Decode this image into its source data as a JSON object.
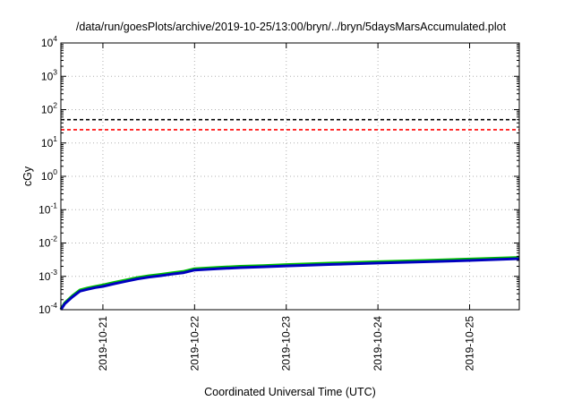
{
  "chart_data": {
    "type": "line",
    "title": "/data/run/goesPlots/archive/2019-10-25/13:00/bryn/../bryn/5daysMarsAccumulated.plot",
    "xlabel": "Coordinated Universal Time (UTC)",
    "ylabel": "cGy",
    "y_scale": "log",
    "ylim": [
      0.0001,
      10000
    ],
    "y_ticks": [
      {
        "value": 0.0001,
        "base": "10",
        "exp": "-4"
      },
      {
        "value": 0.001,
        "base": "10",
        "exp": "-3"
      },
      {
        "value": 0.01,
        "base": "10",
        "exp": "-2"
      },
      {
        "value": 0.1,
        "base": "10",
        "exp": "-1"
      },
      {
        "value": 1,
        "base": "10",
        "exp": "0"
      },
      {
        "value": 10,
        "base": "10",
        "exp": "1"
      },
      {
        "value": 100,
        "base": "10",
        "exp": "2"
      },
      {
        "value": 1000,
        "base": "10",
        "exp": "3"
      },
      {
        "value": 10000,
        "base": "10",
        "exp": "4"
      }
    ],
    "xlim": [
      "2019-10-20T13:00",
      "2019-10-25T13:00"
    ],
    "x_ticks": [
      "2019-10-21",
      "2019-10-22",
      "2019-10-23",
      "2019-10-24",
      "2019-10-25"
    ],
    "grid": true,
    "reference_lines": [
      {
        "y": 50,
        "color": "#000000",
        "style": "dashed"
      },
      {
        "y": 25,
        "color": "#ff0000",
        "style": "dashed"
      }
    ],
    "series": [
      {
        "color": "#00c000",
        "x": [
          "2019-10-20T13:00",
          "2019-10-20T14:00",
          "2019-10-20T16:00",
          "2019-10-20T18:00",
          "2019-10-20T20:00",
          "2019-10-20T22:00",
          "2019-10-21T00:00",
          "2019-10-21T03:00",
          "2019-10-21T06:00",
          "2019-10-21T09:00",
          "2019-10-21T12:00",
          "2019-10-21T15:00",
          "2019-10-21T18:00",
          "2019-10-21T21:00",
          "2019-10-22T00:00",
          "2019-10-22T06:00",
          "2019-10-22T12:00",
          "2019-10-22T18:00",
          "2019-10-23T00:00",
          "2019-10-23T12:00",
          "2019-10-24T00:00",
          "2019-10-24T12:00",
          "2019-10-25T00:00",
          "2019-10-25T13:00"
        ],
        "y": [
          0.000105,
          0.00016,
          0.00026,
          0.00039,
          0.00045,
          0.0005,
          0.00055,
          0.00066,
          0.00078,
          0.00092,
          0.00104,
          0.00114,
          0.00127,
          0.0014,
          0.0017,
          0.00185,
          0.002,
          0.0021,
          0.00225,
          0.0025,
          0.00275,
          0.003,
          0.0033,
          0.0037
        ]
      },
      {
        "color": "#0000c0",
        "x": [
          "2019-10-20T13:00",
          "2019-10-20T14:00",
          "2019-10-20T16:00",
          "2019-10-20T18:00",
          "2019-10-20T20:00",
          "2019-10-20T22:00",
          "2019-10-21T00:00",
          "2019-10-21T03:00",
          "2019-10-21T06:00",
          "2019-10-21T09:00",
          "2019-10-21T12:00",
          "2019-10-21T15:00",
          "2019-10-21T18:00",
          "2019-10-21T21:00",
          "2019-10-22T00:00",
          "2019-10-22T06:00",
          "2019-10-22T12:00",
          "2019-10-22T18:00",
          "2019-10-23T00:00",
          "2019-10-23T12:00",
          "2019-10-24T00:00",
          "2019-10-24T12:00",
          "2019-10-25T00:00",
          "2019-10-25T13:00"
        ],
        "y": [
          0.0001,
          0.00015,
          0.00024,
          0.00036,
          0.00041,
          0.00046,
          0.0005,
          0.0006,
          0.00071,
          0.00084,
          0.00095,
          0.00104,
          0.00116,
          0.00128,
          0.00155,
          0.00169,
          0.00183,
          0.00193,
          0.00205,
          0.00228,
          0.0025,
          0.00273,
          0.003,
          0.0034
        ]
      }
    ]
  }
}
